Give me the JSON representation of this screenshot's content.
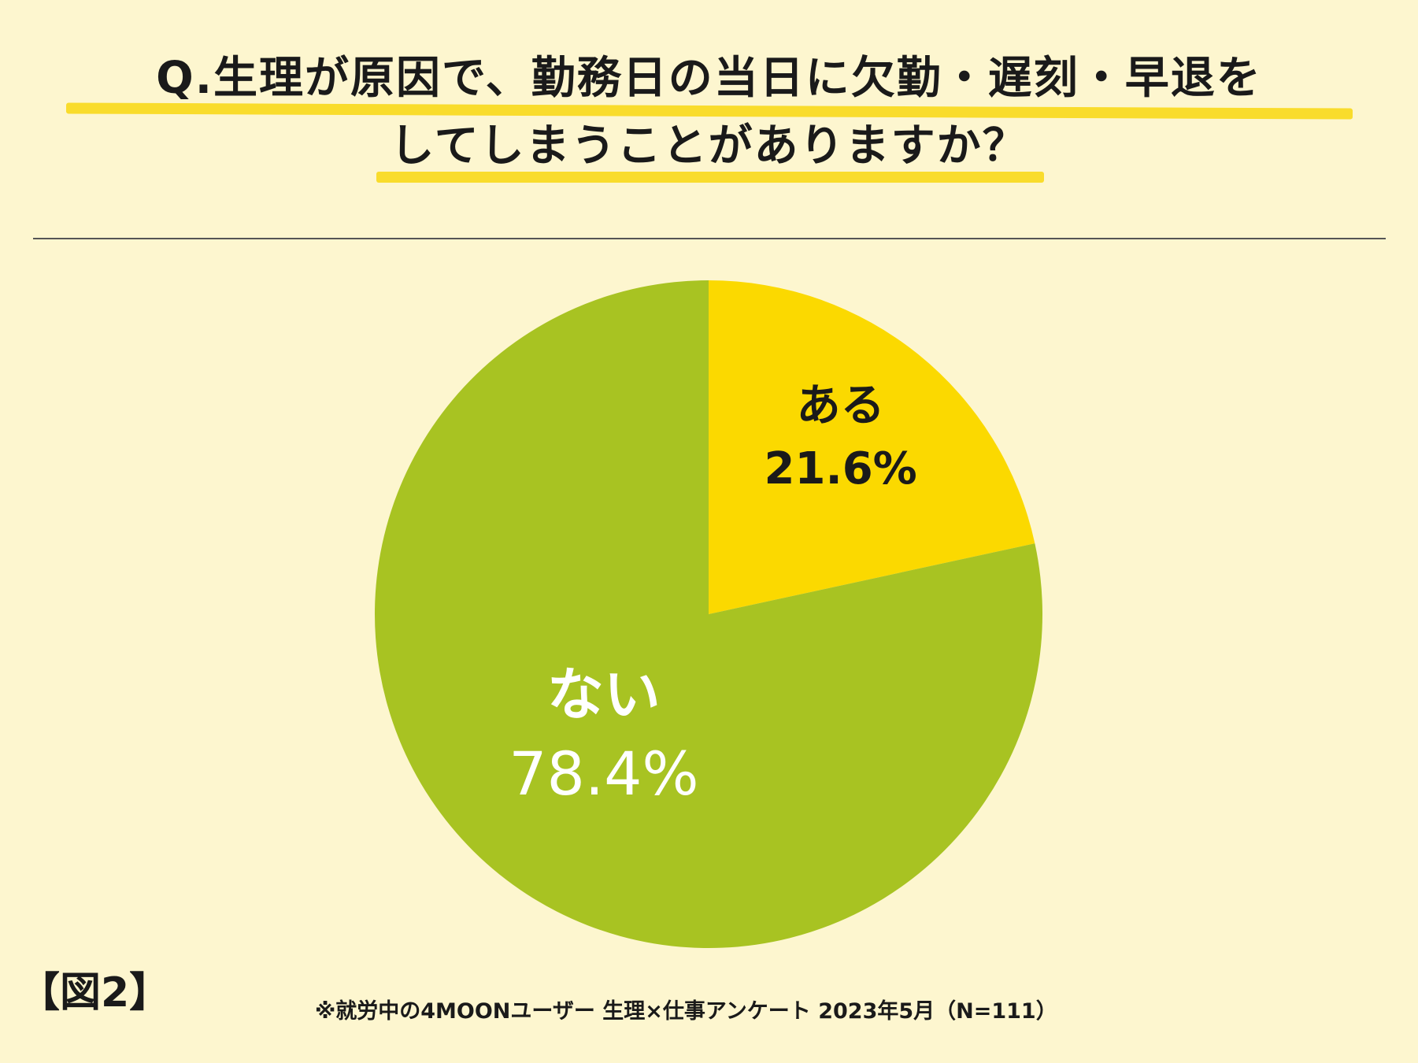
{
  "title": {
    "line1": "Q.生理が原因で、勤務日の当日に欠勤・遅刻・早退を",
    "line2": "してしまうことがありますか？"
  },
  "figure_label": "【図2】",
  "source_note": "※就労中の4MOONユーザー 生理×仕事アンケート 2023年5月（N=111）",
  "colors": {
    "background": "#fdf6cf",
    "aru": "#fbd900",
    "nai": "#a8c322",
    "highlight": "#f9dc2c"
  },
  "chart_data": {
    "type": "pie",
    "slices": [
      {
        "label": "ある",
        "value": 21.6,
        "display": "21.6%",
        "color": "#fbd900",
        "text_color": "#1a1a1a"
      },
      {
        "label": "ない",
        "value": 78.4,
        "display": "78.4%",
        "color": "#a8c322",
        "text_color": "#ffffff"
      }
    ],
    "start_angle": "12 o'clock",
    "direction": "clockwise",
    "legend": "none"
  }
}
